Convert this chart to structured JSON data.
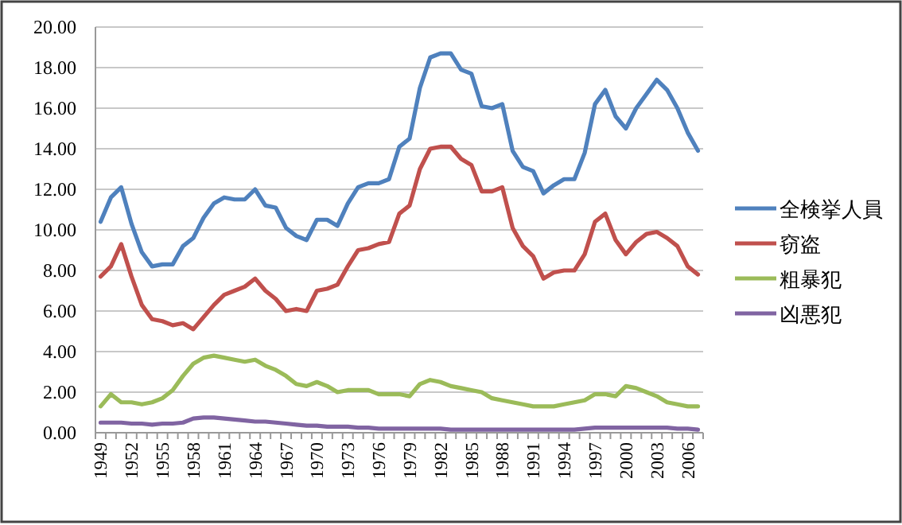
{
  "chart_data": {
    "type": "line",
    "categories": [
      "1949",
      null,
      null,
      "1952",
      null,
      null,
      "1955",
      null,
      null,
      "1958",
      null,
      null,
      "1961",
      null,
      null,
      "1964",
      null,
      null,
      "1967",
      null,
      null,
      "1970",
      null,
      null,
      "1973",
      null,
      null,
      "1976",
      null,
      null,
      "1979",
      null,
      null,
      "1982",
      null,
      null,
      "1985",
      null,
      null,
      "1988",
      null,
      null,
      "1991",
      null,
      null,
      "1994",
      null,
      null,
      "1997",
      null,
      null,
      "2000",
      null,
      null,
      "2003",
      null,
      null,
      "2006",
      null
    ],
    "series": [
      {
        "name": "全検挙人員",
        "color": "#4f81bd",
        "values": [
          10.4,
          11.6,
          12.1,
          10.3,
          8.9,
          8.2,
          8.3,
          8.3,
          9.2,
          9.6,
          10.6,
          11.3,
          11.6,
          11.5,
          11.5,
          12.0,
          11.2,
          11.1,
          10.1,
          9.7,
          9.5,
          10.5,
          10.5,
          10.2,
          11.3,
          12.1,
          12.3,
          12.3,
          12.5,
          14.1,
          14.5,
          17.0,
          18.5,
          18.7,
          18.7,
          17.9,
          17.7,
          16.1,
          16.0,
          16.2,
          13.9,
          13.1,
          12.9,
          11.8,
          12.2,
          12.5,
          12.5,
          13.8,
          16.2,
          16.9,
          15.6,
          15.0,
          16.0,
          16.7,
          17.4,
          16.9,
          16.0,
          14.8,
          13.9
        ]
      },
      {
        "name": "窃盗",
        "color": "#c0504d",
        "values": [
          7.7,
          8.2,
          9.3,
          7.7,
          6.3,
          5.6,
          5.5,
          5.3,
          5.4,
          5.1,
          5.7,
          6.3,
          6.8,
          7.0,
          7.2,
          7.6,
          7.0,
          6.6,
          6.0,
          6.1,
          6.0,
          7.0,
          7.1,
          7.3,
          8.2,
          9.0,
          9.1,
          9.3,
          9.4,
          10.8,
          11.2,
          13.0,
          14.0,
          14.1,
          14.1,
          13.5,
          13.2,
          11.9,
          11.9,
          12.1,
          10.1,
          9.2,
          8.7,
          7.6,
          7.9,
          8.0,
          8.0,
          8.8,
          10.4,
          10.8,
          9.5,
          8.8,
          9.4,
          9.8,
          9.9,
          9.6,
          9.2,
          8.2,
          7.8
        ]
      },
      {
        "name": "粗暴犯",
        "color": "#9bbb59",
        "values": [
          1.3,
          1.9,
          1.5,
          1.5,
          1.4,
          1.5,
          1.7,
          2.1,
          2.8,
          3.4,
          3.7,
          3.8,
          3.7,
          3.6,
          3.5,
          3.6,
          3.3,
          3.1,
          2.8,
          2.4,
          2.3,
          2.5,
          2.3,
          2.0,
          2.1,
          2.1,
          2.1,
          1.9,
          1.9,
          1.9,
          1.8,
          2.4,
          2.6,
          2.5,
          2.3,
          2.2,
          2.1,
          2.0,
          1.7,
          1.6,
          1.5,
          1.4,
          1.3,
          1.3,
          1.3,
          1.4,
          1.5,
          1.6,
          1.9,
          1.9,
          1.8,
          2.3,
          2.2,
          2.0,
          1.8,
          1.5,
          1.4,
          1.3,
          1.3
        ]
      },
      {
        "name": "凶悪犯",
        "color": "#8064a2",
        "values": [
          0.5,
          0.5,
          0.5,
          0.45,
          0.45,
          0.4,
          0.45,
          0.45,
          0.5,
          0.7,
          0.75,
          0.75,
          0.7,
          0.65,
          0.6,
          0.55,
          0.55,
          0.5,
          0.45,
          0.4,
          0.35,
          0.35,
          0.3,
          0.3,
          0.3,
          0.25,
          0.25,
          0.2,
          0.2,
          0.2,
          0.2,
          0.2,
          0.2,
          0.2,
          0.15,
          0.15,
          0.15,
          0.15,
          0.15,
          0.15,
          0.15,
          0.15,
          0.15,
          0.15,
          0.15,
          0.15,
          0.15,
          0.2,
          0.25,
          0.25,
          0.25,
          0.25,
          0.25,
          0.25,
          0.25,
          0.25,
          0.2,
          0.2,
          0.15
        ]
      }
    ],
    "ylim": [
      0,
      20
    ],
    "yticks": [
      {
        "value": 0,
        "label": "0.00"
      },
      {
        "value": 2,
        "label": "2.00"
      },
      {
        "value": 4,
        "label": "4.00"
      },
      {
        "value": 6,
        "label": "6.00"
      },
      {
        "value": 8,
        "label": "8.00"
      },
      {
        "value": 10,
        "label": "10.00"
      },
      {
        "value": 12,
        "label": "12.00"
      },
      {
        "value": 14,
        "label": "14.00"
      },
      {
        "value": 16,
        "label": "16.00"
      },
      {
        "value": 18,
        "label": "18.00"
      },
      {
        "value": 20,
        "label": "20.00"
      }
    ],
    "grid": "y",
    "legend": "right",
    "marker": "none",
    "line_style": "solid"
  }
}
